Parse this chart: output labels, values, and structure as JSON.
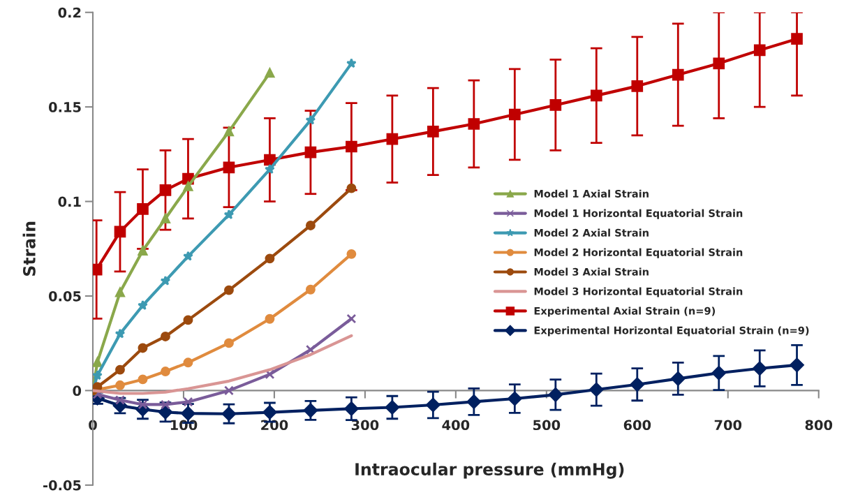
{
  "chart_data": {
    "type": "line",
    "xlabel": "Intraocular pressure (mmHg)",
    "ylabel": "Strain",
    "xlim": [
      0,
      800
    ],
    "xticks": [
      0,
      100,
      200,
      300,
      400,
      500,
      600,
      700,
      800
    ],
    "ylim": [
      -0.05,
      0.2
    ],
    "yticks": [
      -0.05,
      0,
      0.05,
      0.1,
      0.15,
      0.2
    ],
    "grid": false,
    "legend": "right",
    "series": [
      {
        "name": "Model 1 Axial Strain",
        "color": "#8aa84b",
        "marker": "triangle",
        "x": [
          0,
          5,
          30,
          55,
          80,
          105,
          150,
          195
        ],
        "values": [
          0,
          0.015,
          0.052,
          0.074,
          0.091,
          0.108,
          0.137,
          0.168
        ]
      },
      {
        "name": "Model 1 Horizontal Equatorial Strain",
        "color": "#7a5c9a",
        "marker": "cross",
        "x": [
          0,
          5,
          30,
          55,
          80,
          105,
          150,
          195,
          240,
          285
        ],
        "values": [
          0,
          -0.002,
          -0.005,
          -0.0074,
          -0.0074,
          -0.006,
          0,
          0.0086,
          0.0216,
          0.038
        ]
      },
      {
        "name": "Model 2 Axial Strain",
        "color": "#3d9ab2",
        "marker": "star",
        "x": [
          0,
          5,
          30,
          55,
          80,
          105,
          150,
          195,
          240,
          285
        ],
        "values": [
          0,
          0.008,
          0.03,
          0.045,
          0.058,
          0.071,
          0.093,
          0.117,
          0.143,
          0.173
        ]
      },
      {
        "name": "Model 2 Horizontal Equatorial Strain",
        "color": "#e08b3e",
        "marker": "circle",
        "x": [
          0,
          30,
          55,
          80,
          105,
          150,
          195,
          240,
          285
        ],
        "values": [
          0,
          0.0028,
          0.0059,
          0.0101,
          0.0148,
          0.0251,
          0.0379,
          0.0534,
          0.0722
        ]
      },
      {
        "name": "Model 3 Axial Strain",
        "color": "#9c4a0e",
        "marker": "circle",
        "x": [
          0,
          5,
          30,
          55,
          80,
          105,
          150,
          195,
          240,
          285
        ],
        "values": [
          0,
          0.0019,
          0.011,
          0.0225,
          0.0286,
          0.0373,
          0.0531,
          0.0698,
          0.0873,
          0.107
        ]
      },
      {
        "name": "Model 3 Horizontal Equatorial Strain",
        "color": "#d99594",
        "marker": "none",
        "x": [
          0,
          30,
          55,
          80,
          105,
          150,
          195,
          240,
          285
        ],
        "values": [
          0,
          -0.0015,
          -0.0015,
          -0.0008,
          0.001,
          0.005,
          0.011,
          0.019,
          0.029
        ]
      },
      {
        "name": "Experimental Axial Strain (n=9)",
        "color": "#c00000",
        "marker": "square",
        "x": [
          4,
          30,
          55,
          80,
          105,
          150,
          195,
          240,
          285,
          330,
          375,
          420,
          465,
          510,
          555,
          600,
          645,
          690,
          735,
          776
        ],
        "values": [
          0.064,
          0.084,
          0.096,
          0.106,
          0.112,
          0.118,
          0.122,
          0.126,
          0.129,
          0.133,
          0.137,
          0.141,
          0.146,
          0.151,
          0.156,
          0.161,
          0.167,
          0.173,
          0.18,
          0.186
        ],
        "errors": [
          0.026,
          0.021,
          0.021,
          0.021,
          0.021,
          0.021,
          0.022,
          0.022,
          0.023,
          0.023,
          0.023,
          0.023,
          0.024,
          0.024,
          0.025,
          0.026,
          0.027,
          [
            0.144,
            0.2
          ],
          [
            0.15,
            0.2
          ],
          [
            0.156,
            0.2
          ]
        ]
      },
      {
        "name": "Experimental Horizontal Equatorial Strain (n=9)",
        "color": "#002060",
        "marker": "diamond",
        "x": [
          0,
          5,
          30,
          55,
          80,
          105,
          150,
          195,
          240,
          285,
          330,
          375,
          420,
          465,
          510,
          555,
          600,
          645,
          690,
          735,
          776
        ],
        "values": [
          0,
          -0.004,
          -0.008,
          -0.0099,
          -0.0114,
          -0.0121,
          -0.0123,
          -0.0115,
          -0.0105,
          -0.0096,
          -0.0089,
          -0.0076,
          -0.0059,
          -0.0043,
          -0.0022,
          0.0005,
          0.0032,
          0.0063,
          0.0093,
          0.0117,
          0.0135
        ],
        "errors": [
          null,
          0.003,
          0.004,
          0.005,
          0.005,
          0.005,
          0.005,
          0.005,
          0.005,
          0.006,
          0.006,
          0.007,
          0.007,
          0.0075,
          0.008,
          0.0085,
          0.0085,
          0.0085,
          0.009,
          0.0095,
          0.0105
        ]
      }
    ]
  }
}
